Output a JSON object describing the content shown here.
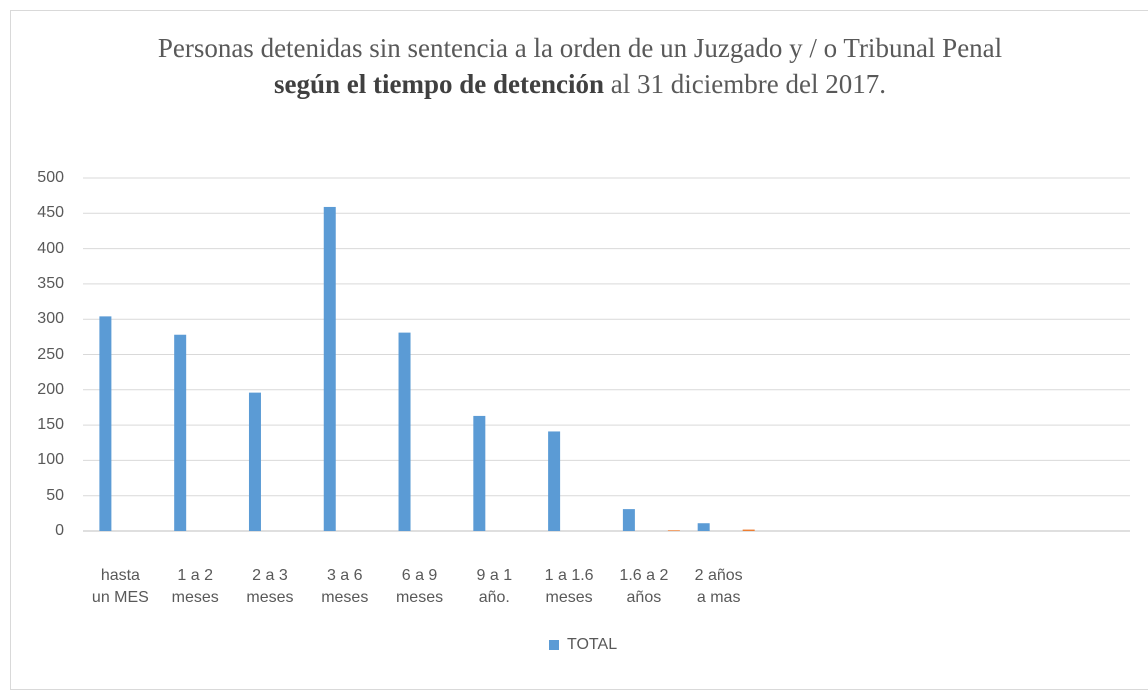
{
  "chart_data": {
    "type": "bar",
    "title": {
      "text": [
        "Personas detenidas sin sentencia a la orden de un Juzgado y / o Tribunal Penal ",
        "según el tiempo de detención",
        " al 31 diciembre del 2017."
      ],
      "bold": [
        false,
        true,
        false
      ]
    },
    "categories": [
      "hasta\nun MES",
      "1 a 2\nmeses",
      "2 a 3\nmeses",
      "3 a 6\nmeses",
      "6 a 9\nmeses",
      "9 a 1\naño.",
      "1 a 1.6\nmeses",
      "1.6 a 2\naños",
      "2 años\na mas",
      null,
      null,
      null,
      null,
      null
    ],
    "series": [
      {
        "name": "TOTAL",
        "color": "#5b9bd5",
        "values": [
          304,
          278,
          196,
          459,
          281,
          163,
          141,
          31,
          11,
          null,
          null,
          null,
          null,
          null
        ]
      },
      {
        "color": "#ed7d31",
        "values": [
          0,
          0,
          0,
          0,
          0,
          0,
          0,
          1,
          2,
          null,
          null,
          null,
          null,
          null
        ]
      }
    ],
    "ylim": [
      0,
      500
    ],
    "yticks": [
      0,
      50,
      100,
      150,
      200,
      250,
      300,
      350,
      400,
      450,
      500
    ],
    "grid": true,
    "legend": "bottom"
  }
}
